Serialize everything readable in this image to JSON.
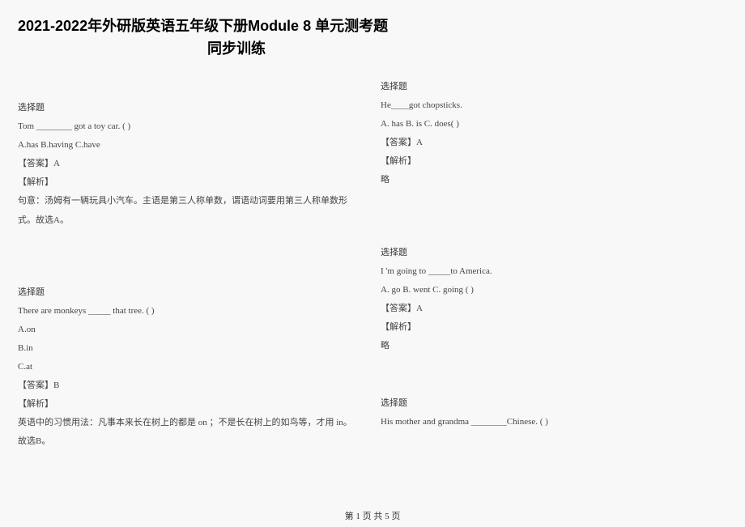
{
  "header": {
    "main_title": "2021-2022年外研版英语五年级下册Module 8 单元测考题",
    "sub_title": "同步训练"
  },
  "left": {
    "q1": {
      "label": "选择题",
      "stem": "Tom ________ got a toy car. ( )",
      "options": "A.has B.having C.have",
      "answer": "【答案】A",
      "jiexi_label": "【解析】",
      "jiexi": "句意：汤姆有一辆玩具小汽车。主语是第三人称单数，谓语动词要用第三人称单数形式。故选A。"
    },
    "q2": {
      "label": "选择题",
      "stem": "There are monkeys _____ that tree. ( )",
      "optA": "A.on",
      "optB": "B.in",
      "optC": "C.at",
      "answer": "【答案】B",
      "jiexi_label": "【解析】",
      "jiexi": "英语中的习惯用法：凡事本来长在树上的都是 on ；不是长在树上的如鸟等，才用 in。故选B。"
    }
  },
  "right": {
    "q3": {
      "label": "选择题",
      "stem": "He____got chopsticks.",
      "options": "A. has B. is C. does( )",
      "answer": "【答案】A",
      "jiexi_label": "【解析】",
      "jiexi": "略"
    },
    "q4": {
      "label": "选择题",
      "stem": "I 'm going to _____to America.",
      "options": "A. go B. went C. going ( )",
      "answer": "【答案】A",
      "jiexi_label": "【解析】",
      "jiexi": "略"
    },
    "q5": {
      "label": "选择题",
      "stem": "His mother and grandma ________Chinese. ( )"
    }
  },
  "footer": {
    "text": "第 1 页 共 5 页"
  }
}
